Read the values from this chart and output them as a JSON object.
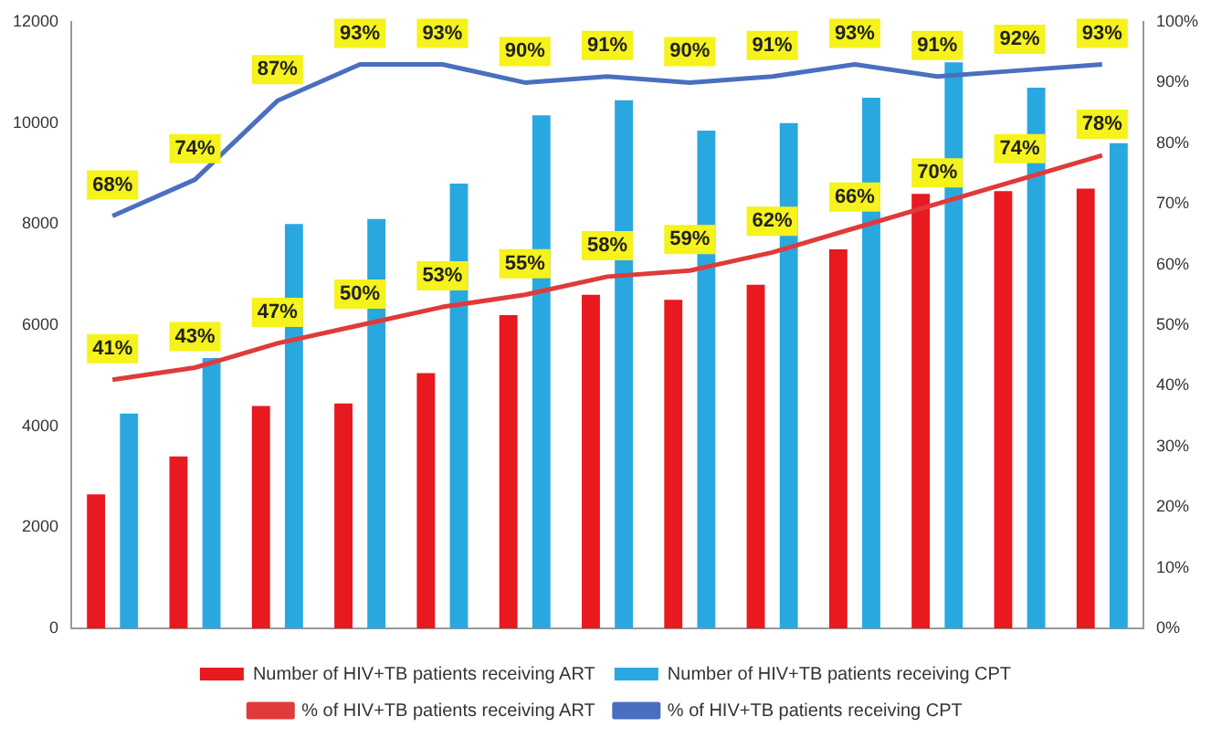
{
  "chart_data": {
    "type": "bar",
    "categories": [
      null,
      null,
      null,
      null,
      null,
      null,
      null,
      null,
      null,
      null,
      null,
      null,
      null
    ],
    "series": [
      {
        "name": "Number of HIV+TB patients receiving ART",
        "color": "#e8191f",
        "values": [
          2650,
          3400,
          4400,
          4450,
          5050,
          6200,
          6600,
          6500,
          6800,
          7500,
          8600,
          8650,
          8700
        ]
      },
      {
        "name": "Number of HIV+TB patients receiving CPT",
        "color": "#29a8e0",
        "values": [
          4250,
          5350,
          8000,
          8100,
          8800,
          10150,
          10450,
          9850,
          10000,
          10500,
          11200,
          10700,
          9600
        ]
      },
      {
        "name": "% of HIV+TB patients receiving ART",
        "type": "line",
        "axis": "y2",
        "color": "#e03a3a",
        "values": [
          41,
          43,
          47,
          50,
          53,
          55,
          58,
          59,
          62,
          66,
          70,
          74,
          78
        ],
        "value_labels": [
          "41%",
          "43%",
          "47%",
          "50%",
          "53%",
          "55%",
          "58%",
          "59%",
          "62%",
          "66%",
          "70%",
          "74%",
          "78%"
        ]
      },
      {
        "name": "% of HIV+TB patients receiving CPT",
        "type": "line",
        "axis": "y2",
        "color": "#4a6fc0",
        "values": [
          68,
          74,
          87,
          93,
          93,
          90,
          91,
          90,
          91,
          93,
          91,
          92,
          93
        ],
        "value_labels": [
          "68%",
          "74%",
          "87%",
          "93%",
          "93%",
          "90%",
          "91%",
          "90%",
          "91%",
          "93%",
          "91%",
          "92%",
          "93%"
        ]
      }
    ],
    "ylim": [
      0,
      12000
    ],
    "yticks": [
      0,
      2000,
      4000,
      6000,
      8000,
      10000,
      12000
    ],
    "y2lim": [
      0,
      100
    ],
    "y2ticks": [
      {
        "value": 0,
        "label": "0%"
      },
      {
        "value": 10,
        "label": "10%"
      },
      {
        "value": 20,
        "label": "20%"
      },
      {
        "value": 30,
        "label": "30%"
      },
      {
        "value": 40,
        "label": "40%"
      },
      {
        "value": 50,
        "label": "50%"
      },
      {
        "value": 60,
        "label": "60%"
      },
      {
        "value": 70,
        "label": "70%"
      },
      {
        "value": 80,
        "label": "80%"
      },
      {
        "value": 90,
        "label": "90%"
      },
      {
        "value": 100,
        "label": "100%"
      }
    ],
    "grid": false,
    "legend": "bottom",
    "marker": "none"
  }
}
